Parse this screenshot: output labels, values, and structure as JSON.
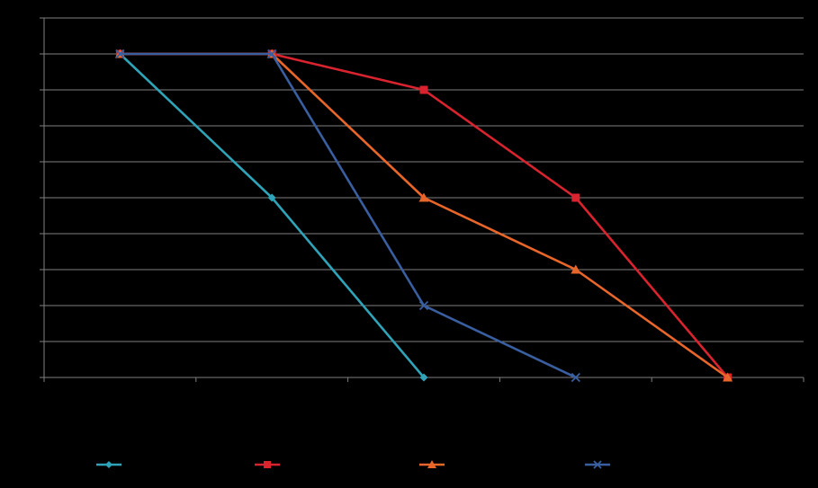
{
  "chart_data": {
    "type": "line",
    "title": "",
    "xlabel": "",
    "ylabel": "",
    "x": [
      1,
      2,
      3,
      4,
      5
    ],
    "ylim": [
      0,
      10
    ],
    "yticks": [
      0,
      1,
      2,
      3,
      4,
      5,
      6,
      7,
      8,
      9,
      10
    ],
    "grid": true,
    "legend_position": "bottom",
    "series": [
      {
        "name": "",
        "color": "#2fa3b8",
        "marker": "diamond",
        "values": [
          9,
          5,
          0,
          null,
          null
        ]
      },
      {
        "name": "",
        "color": "#d9232e",
        "marker": "square",
        "values": [
          9,
          9,
          8,
          5,
          0
        ]
      },
      {
        "name": "",
        "color": "#e8662a",
        "marker": "triangle",
        "values": [
          9,
          9,
          5,
          3,
          0
        ]
      },
      {
        "name": "",
        "color": "#3a5fa0",
        "marker": "x",
        "values": [
          9,
          9,
          2,
          0,
          null
        ]
      }
    ]
  },
  "style": {
    "background": "#000000",
    "grid_color": "#7f7f7f",
    "axis_color": "#7f7f7f"
  }
}
